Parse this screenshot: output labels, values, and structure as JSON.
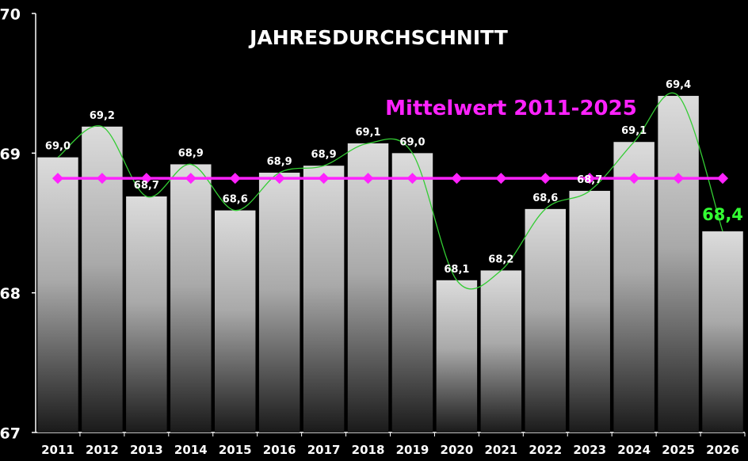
{
  "chart_data": {
    "type": "bar",
    "title": "JAHRESDURCHSCHNITT",
    "categories": [
      "2011",
      "2012",
      "2013",
      "2014",
      "2015",
      "2016",
      "2017",
      "2018",
      "2019",
      "2020",
      "2021",
      "2022",
      "2023",
      "2024",
      "2025",
      "2026"
    ],
    "values": [
      68.97,
      69.19,
      68.69,
      68.92,
      68.59,
      68.86,
      68.91,
      69.07,
      69.0,
      68.09,
      68.16,
      68.6,
      68.73,
      69.08,
      69.41,
      68.44
    ],
    "data_labels": [
      "69,0",
      "69,2",
      "68,7",
      "68,9",
      "68,6",
      "68,9",
      "68,9",
      "69,1",
      "69,0",
      "68,1",
      "68,2",
      "68,6",
      "68,7",
      "69,1",
      "69,4",
      "68,4"
    ],
    "highlight_index": 15,
    "ylim": [
      67,
      70
    ],
    "yticks": [
      67,
      68,
      69,
      70
    ],
    "ytick_labels": [
      "67",
      "68",
      "69",
      "70"
    ],
    "xlabel": "",
    "ylabel": "",
    "mean_line": {
      "label": "Mittelwert 2011-2025",
      "value": 68.82,
      "color": "#ff22ff",
      "marker": "diamond"
    },
    "trend_line": {
      "type": "smoothed",
      "color": "#33cc33"
    },
    "highlight_color": "#33ff33",
    "grid": false,
    "legend": "none"
  }
}
